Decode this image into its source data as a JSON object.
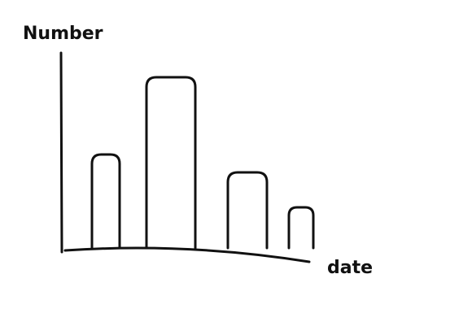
{
  "chart_data": {
    "type": "bar",
    "ylabel": "Number",
    "xlabel": "date",
    "categories": [
      null,
      null,
      null,
      null
    ],
    "values": [
      115,
      210,
      93,
      50
    ],
    "color": "#111111",
    "ylim": [
      0,
      240
    ]
  }
}
